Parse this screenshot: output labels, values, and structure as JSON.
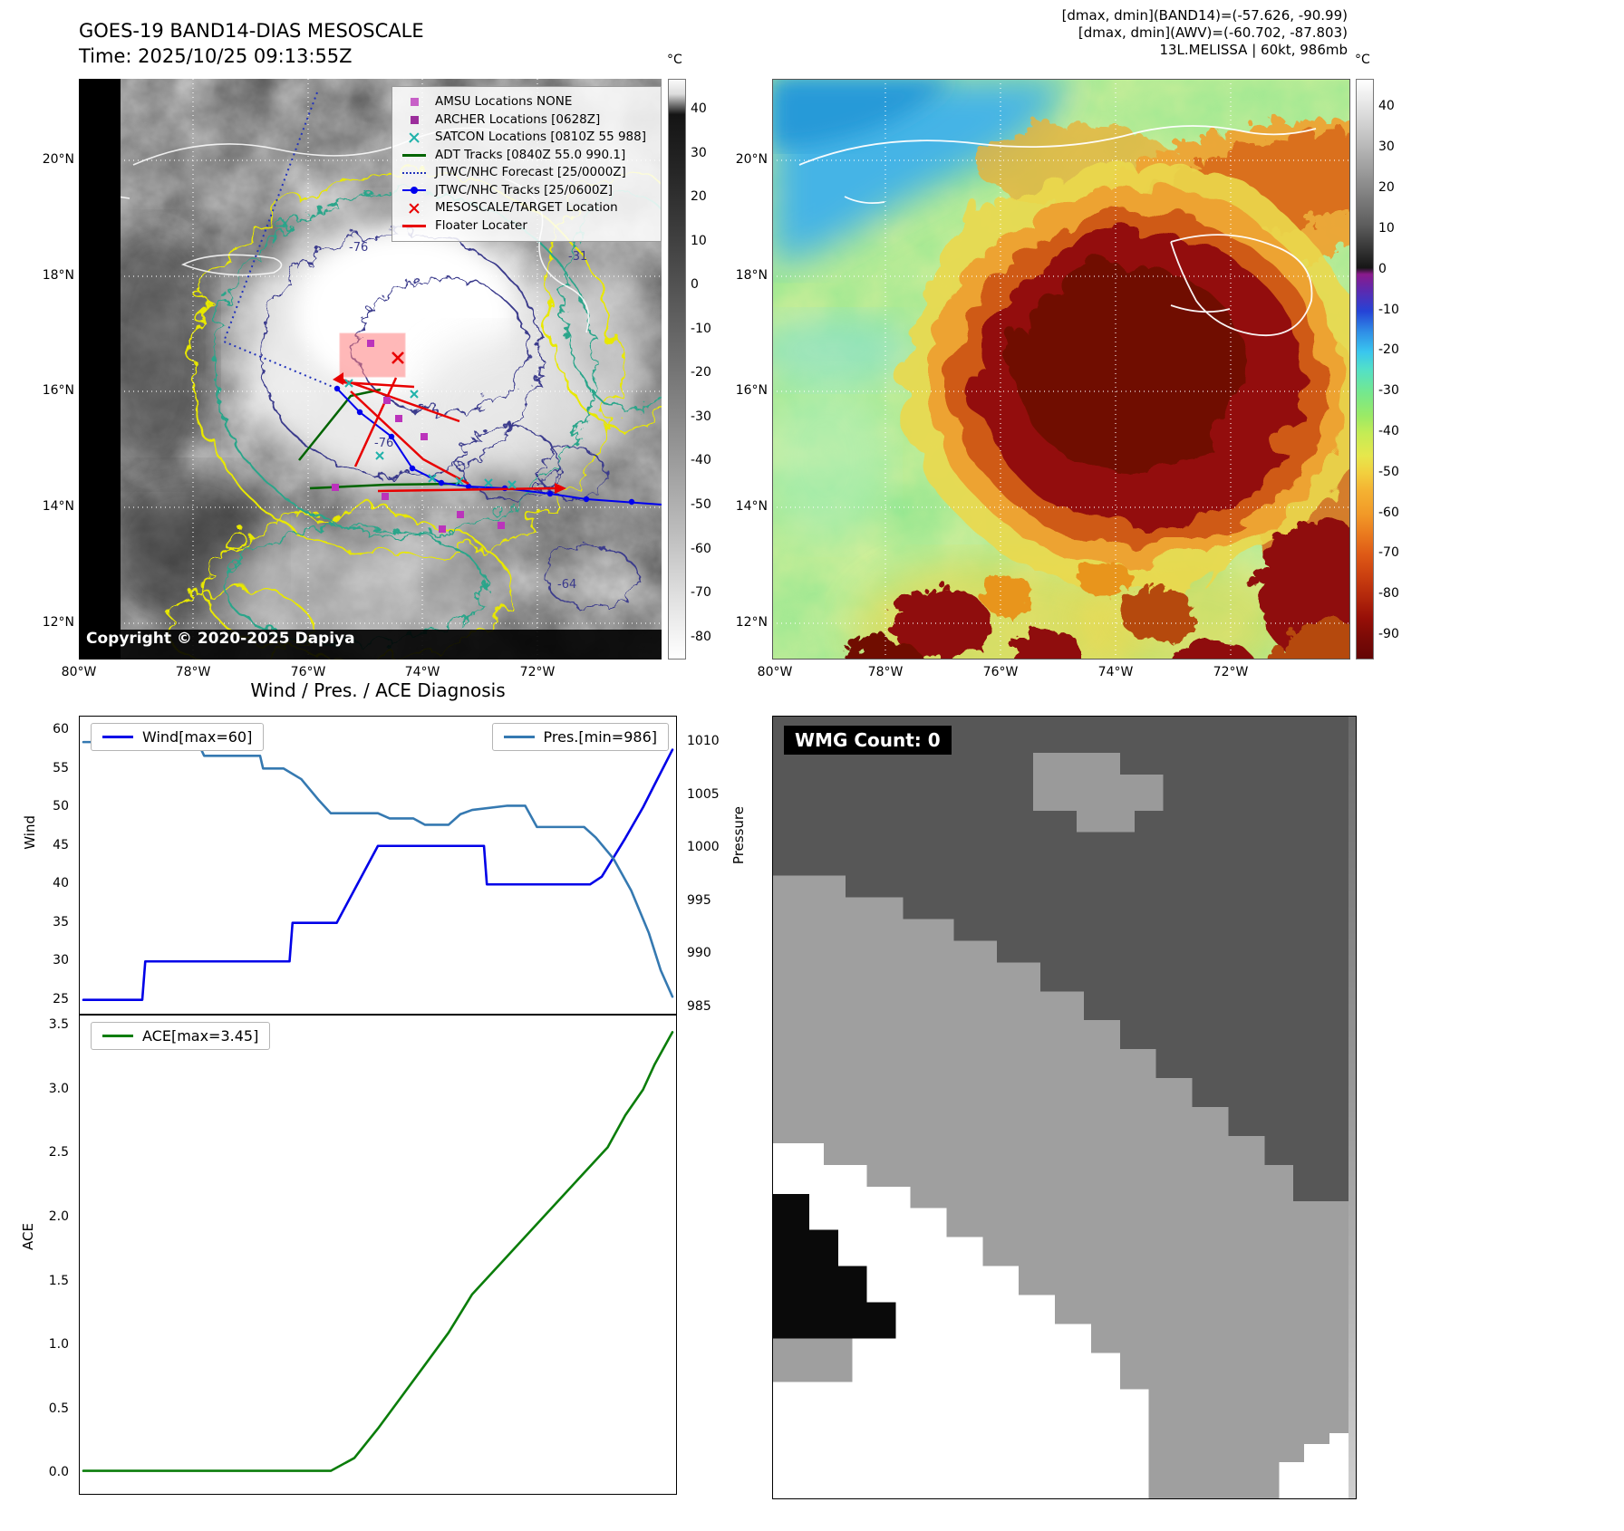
{
  "panel_tl": {
    "title_line1": "GOES-19 BAND14-DIAS MESOSCALE",
    "title_line2": "Time: 2025/10/25 09:13:55Z",
    "copyright": "Copyright © 2020-2025 Dapiya",
    "lat_ticks": [
      "20°N",
      "18°N",
      "16°N",
      "14°N",
      "12°N"
    ],
    "lon_ticks": [
      "80°W",
      "78°W",
      "76°W",
      "74°W",
      "72°W"
    ],
    "colorbar": {
      "unit": "°C",
      "ticks": [
        40,
        30,
        20,
        10,
        0,
        -10,
        -20,
        -30,
        -40,
        -50,
        -60,
        -70,
        -80
      ]
    },
    "contour_labels": [
      "-76",
      "-31",
      "-76",
      "-64"
    ],
    "legend": [
      {
        "label": "AMSU Locations NONE",
        "color": "#c75fc7",
        "marker": "square"
      },
      {
        "label": "ARCHER Locations [0628Z]",
        "color": "#9b2d9b",
        "marker": "square"
      },
      {
        "label": "SATCON Locations [0810Z 55 988]",
        "color": "#20b2aa",
        "marker": "x"
      },
      {
        "label": "ADT Tracks [0840Z 55.0 990.1]",
        "color": "#006400",
        "marker": "line"
      },
      {
        "label": "JTWC/NHC Forecast [25/0000Z]",
        "color": "#2233bb",
        "marker": "dotted-line"
      },
      {
        "label": "JTWC/NHC Tracks [25/0600Z]",
        "color": "#0000ee",
        "marker": "line-dot"
      },
      {
        "label": "MESOSCALE/TARGET Location",
        "color": "#e80000",
        "marker": "x"
      },
      {
        "label": "Floater Locater",
        "color": "#e80000",
        "marker": "line"
      }
    ]
  },
  "panel_tr": {
    "info_line1": "[dmax, dmin](BAND14)=(-57.626, -90.99)",
    "info_line2": "[dmax, dmin](AWV)=(-60.702, -87.803)",
    "info_line3": "13L.MELISSA | 60kt, 986mb",
    "lat_ticks": [
      "20°N",
      "18°N",
      "16°N",
      "14°N",
      "12°N"
    ],
    "lon_ticks": [
      "80°W",
      "78°W",
      "76°W",
      "74°W",
      "72°W"
    ],
    "colorbar": {
      "unit": "°C",
      "ticks": [
        40,
        30,
        20,
        10,
        0,
        -10,
        -20,
        -30,
        -40,
        -50,
        -60,
        -70,
        -80,
        -90
      ]
    }
  },
  "panel_br": {
    "label": "WMG Count: 0"
  },
  "chart_data": [
    {
      "type": "line",
      "title": "Wind / Pres. / ACE Diagnosis",
      "axes": {
        "left": {
          "label": "Wind",
          "min": 23.2,
          "max": 61.8,
          "ticks": [
            60,
            55,
            50,
            45,
            40,
            35,
            30,
            25
          ]
        },
        "right": {
          "label": "Pressure",
          "min": 984.4,
          "max": 1012.4,
          "ticks": [
            1010,
            1005,
            1000,
            995,
            990,
            985
          ]
        }
      },
      "series": [
        {
          "name": "Wind[max=60]",
          "color": "#0000e8",
          "axis": "left",
          "x": [
            0,
            0.1,
            0.105,
            0.35,
            0.355,
            0.43,
            0.5,
            0.68,
            0.685,
            0.86,
            0.88,
            0.92,
            0.95,
            0.97,
            1.0
          ],
          "y": [
            25,
            25,
            30,
            30,
            35,
            35,
            45,
            45,
            40,
            40,
            41,
            46,
            50,
            53,
            57.5
          ]
        },
        {
          "name": "Pres.[min=986]",
          "color": "#3579b1",
          "axis": "right",
          "x": [
            0,
            0.13,
            0.135,
            0.2,
            0.205,
            0.3,
            0.305,
            0.34,
            0.37,
            0.4,
            0.42,
            0.5,
            0.52,
            0.56,
            0.58,
            0.62,
            0.64,
            0.66,
            0.72,
            0.75,
            0.77,
            0.85,
            0.87,
            0.9,
            0.93,
            0.96,
            0.98,
            1.0
          ],
          "y": [
            1010,
            1010,
            1009.3,
            1009.3,
            1008.7,
            1008.7,
            1007.5,
            1007.5,
            1006.5,
            1004.5,
            1003.3,
            1003.3,
            1002.8,
            1002.8,
            1002.2,
            1002.2,
            1003.2,
            1003.6,
            1004,
            1004,
            1002,
            1002,
            1001,
            999,
            996,
            992,
            988.5,
            986
          ]
        }
      ]
    },
    {
      "type": "line",
      "title": "",
      "axes": {
        "left": {
          "label": "ACE",
          "min": -0.16,
          "max": 3.58,
          "ticks": [
            "3.5",
            "3.0",
            "2.5",
            "2.0",
            "1.5",
            "1.0",
            "0.5",
            "0.0"
          ]
        }
      },
      "series": [
        {
          "name": "ACE[max=3.45]",
          "color": "#0a7d0a",
          "axis": "left",
          "x": [
            0,
            0.42,
            0.46,
            0.5,
            0.54,
            0.58,
            0.62,
            0.66,
            0.7,
            0.74,
            0.78,
            0.82,
            0.86,
            0.89,
            0.92,
            0.95,
            0.97,
            1.0
          ],
          "y": [
            0.02,
            0.02,
            0.12,
            0.35,
            0.6,
            0.85,
            1.1,
            1.4,
            1.6,
            1.8,
            2.0,
            2.2,
            2.4,
            2.55,
            2.8,
            3.0,
            3.2,
            3.45
          ]
        }
      ]
    }
  ]
}
